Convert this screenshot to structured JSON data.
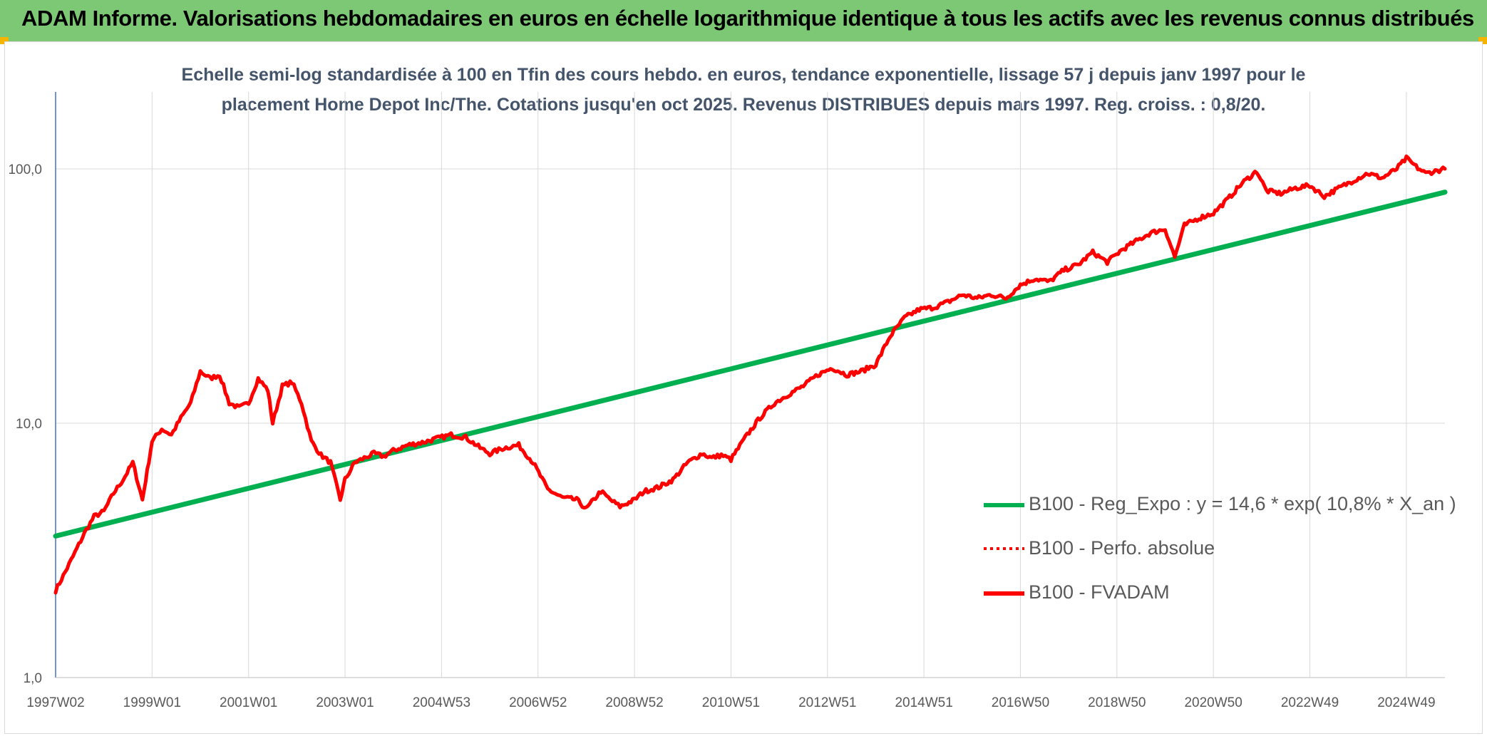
{
  "header": {
    "title": "ADAM Informe. Valorisations hebdomadaires en euros en échelle logarithmique identique à tous les actifs avec les revenus connus distribués"
  },
  "colors": {
    "banner": "#7dc874",
    "accent": "#f4b400",
    "trend": "#00b050",
    "series": "#ff0000",
    "grid": "#d9d9d9",
    "axis": "#4472c4"
  },
  "chart_data": {
    "type": "line",
    "title_line1": "Echelle semi-log standardisée à 100 en Tfin des cours hebdo. en euros, tendance exponentielle, lissage 57 j depuis janv 1997 pour le",
    "title_line2": "placement Home Depot Inc/The. Cotations jusqu'en oct 2025. Revenus DISTRIBUES depuis mars 1997. Reg. croiss. : 0,8/20.",
    "y_scale": "log",
    "ylim": [
      1,
      200
    ],
    "xlim": [
      1997.0,
      2025.8
    ],
    "y_ticks": [
      {
        "value": 1,
        "label": "1,0"
      },
      {
        "value": 10,
        "label": "10,0"
      },
      {
        "value": 100,
        "label": "100,0"
      }
    ],
    "x_ticks": [
      {
        "x": 1997.0,
        "label": "1997W02"
      },
      {
        "x": 1999.0,
        "label": "1999W01"
      },
      {
        "x": 2001.0,
        "label": "2001W01"
      },
      {
        "x": 2003.0,
        "label": "2003W01"
      },
      {
        "x": 2005.0,
        "label": "2004W53"
      },
      {
        "x": 2007.0,
        "label": "2006W52"
      },
      {
        "x": 2009.0,
        "label": "2008W52"
      },
      {
        "x": 2011.0,
        "label": "2010W51"
      },
      {
        "x": 2013.0,
        "label": "2012W51"
      },
      {
        "x": 2015.0,
        "label": "2014W51"
      },
      {
        "x": 2017.0,
        "label": "2016W50"
      },
      {
        "x": 2019.0,
        "label": "2018W50"
      },
      {
        "x": 2021.0,
        "label": "2020W50"
      },
      {
        "x": 2023.0,
        "label": "2022W49"
      },
      {
        "x": 2025.0,
        "label": "2024W49"
      }
    ],
    "legend": [
      {
        "label": "B100 - Reg_Expo : y = 14,6 * exp( 10,8% *  X_an )",
        "style": "solid-green"
      },
      {
        "label": "B100 - Perfo. absolue",
        "style": "dotted-red"
      },
      {
        "label": "B100 - FVADAM",
        "style": "solid-red"
      }
    ],
    "series": [
      {
        "name": "B100 - Reg_Expo : y = 14,6 * exp( 10,8% *  X_an )",
        "x": [
          1997.0,
          2025.8
        ],
        "values": [
          3.6,
          81
        ]
      },
      {
        "name": "B100 - FVADAM",
        "x": [
          1997.0,
          1997.2,
          1997.4,
          1997.6,
          1997.8,
          1998.0,
          1998.2,
          1998.4,
          1998.6,
          1998.8,
          1998.9,
          1999.0,
          1999.2,
          1999.4,
          1999.6,
          1999.8,
          2000.0,
          2000.2,
          2000.4,
          2000.6,
          2000.8,
          2001.0,
          2001.2,
          2001.4,
          2001.5,
          2001.7,
          2001.9,
          2002.1,
          2002.3,
          2002.5,
          2002.7,
          2002.9,
          2003.0,
          2003.2,
          2003.4,
          2003.6,
          2003.8,
          2004.0,
          2004.3,
          2004.6,
          2004.9,
          2005.2,
          2005.5,
          2005.8,
          2006.0,
          2006.3,
          2006.6,
          2006.9,
          2007.2,
          2007.5,
          2007.8,
          2008.0,
          2008.3,
          2008.5,
          2008.7,
          2009.0,
          2009.2,
          2009.5,
          2009.8,
          2010.1,
          2010.4,
          2010.6,
          2010.8,
          2011.0,
          2011.3,
          2011.6,
          2011.9,
          2012.2,
          2012.5,
          2012.8,
          2013.1,
          2013.4,
          2013.7,
          2014.0,
          2014.3,
          2014.6,
          2014.9,
          2015.2,
          2015.5,
          2015.8,
          2016.1,
          2016.4,
          2016.7,
          2017.0,
          2017.3,
          2017.6,
          2017.9,
          2018.2,
          2018.5,
          2018.8,
          2019.1,
          2019.4,
          2019.7,
          2020.0,
          2020.2,
          2020.4,
          2020.7,
          2021.0,
          2021.3,
          2021.6,
          2021.9,
          2022.1,
          2022.4,
          2022.7,
          2023.0,
          2023.3,
          2023.6,
          2023.9,
          2024.2,
          2024.5,
          2024.8,
          2025.0,
          2025.2,
          2025.4,
          2025.6,
          2025.8
        ],
        "values": [
          2.2,
          2.6,
          3.1,
          3.7,
          4.3,
          4.5,
          5.3,
          6.0,
          7.0,
          5.0,
          6.5,
          8.5,
          9.5,
          9.0,
          10.5,
          12.0,
          16.0,
          15.0,
          15.5,
          12.0,
          11.5,
          12.0,
          15.0,
          13.5,
          10.0,
          14.0,
          14.5,
          12.0,
          8.5,
          7.5,
          7.0,
          5.0,
          6.0,
          7.0,
          7.3,
          7.6,
          7.4,
          7.8,
          8.2,
          8.4,
          8.7,
          9.0,
          8.8,
          8.0,
          7.6,
          8.0,
          8.2,
          7.0,
          5.5,
          5.1,
          5.0,
          4.6,
          5.4,
          5.0,
          4.7,
          5.0,
          5.4,
          5.6,
          6.0,
          7.0,
          7.6,
          7.3,
          7.5,
          7.2,
          8.8,
          10.5,
          12.0,
          13.0,
          14.0,
          15.5,
          16.5,
          15.5,
          16.0,
          17.0,
          22.0,
          26.0,
          28.0,
          28.5,
          30.0,
          32.0,
          31.0,
          32.0,
          31.0,
          35.0,
          37.0,
          36.0,
          40.0,
          42.0,
          47.0,
          43.0,
          48.0,
          52.0,
          56.0,
          58.0,
          45.0,
          60.0,
          64.0,
          67.0,
          76.0,
          88.0,
          98.0,
          82.0,
          80.0,
          84.0,
          86.0,
          78.0,
          84.0,
          90.0,
          96.0,
          92.0,
          100.0,
          110.0,
          102.0,
          96.0,
          98.0,
          100.0
        ]
      }
    ]
  }
}
